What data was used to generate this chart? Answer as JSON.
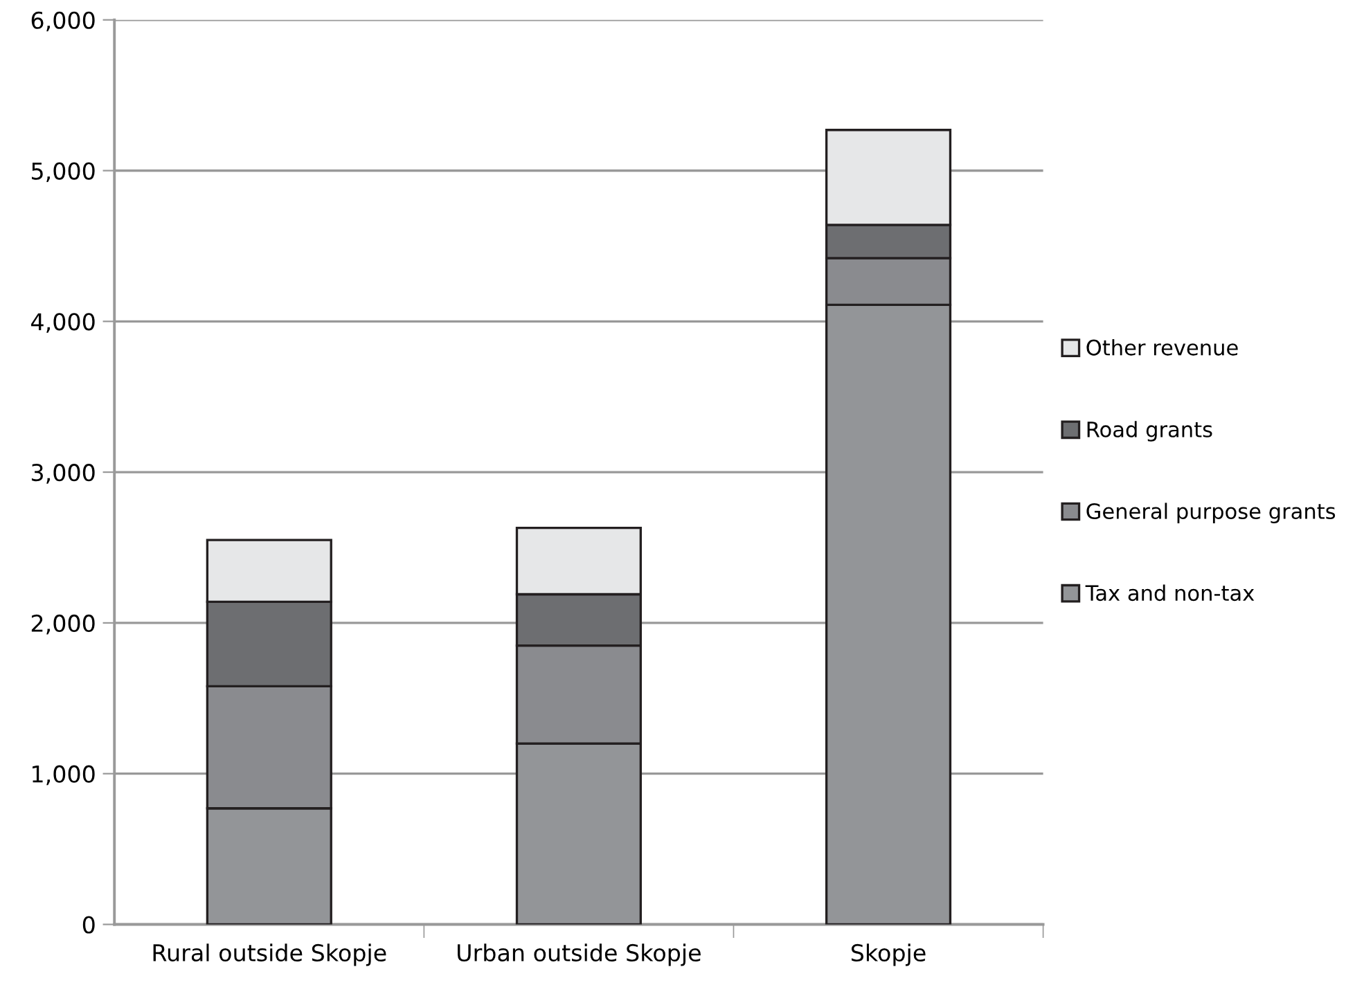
{
  "chart_data": {
    "type": "bar",
    "stacked": true,
    "categories": [
      "Rural outside Skopje",
      "Urban outside Skopje",
      "Skopje"
    ],
    "series": [
      {
        "name": "Tax and non-tax",
        "color": "#939598",
        "values": [
          770,
          1200,
          4110
        ]
      },
      {
        "name": "General purpose grants",
        "color": "#8a8b8f",
        "values": [
          810,
          650,
          310
        ]
      },
      {
        "name": "Road grants",
        "color": "#6d6e71",
        "values": [
          560,
          340,
          220
        ]
      },
      {
        "name": "Other revenue",
        "color": "#e6e7e8",
        "values": [
          410,
          440,
          630
        ]
      }
    ],
    "ylim": [
      0,
      6000
    ],
    "yticks": [
      {
        "value": 0,
        "label": "0"
      },
      {
        "value": 1000,
        "label": "1,000"
      },
      {
        "value": 2000,
        "label": "2,000"
      },
      {
        "value": 3000,
        "label": "3,000"
      },
      {
        "value": 4000,
        "label": "4,000"
      },
      {
        "value": 5000,
        "label": "5,000"
      },
      {
        "value": 6000,
        "label": "6,000"
      }
    ],
    "grid": "y",
    "legend": "right"
  }
}
